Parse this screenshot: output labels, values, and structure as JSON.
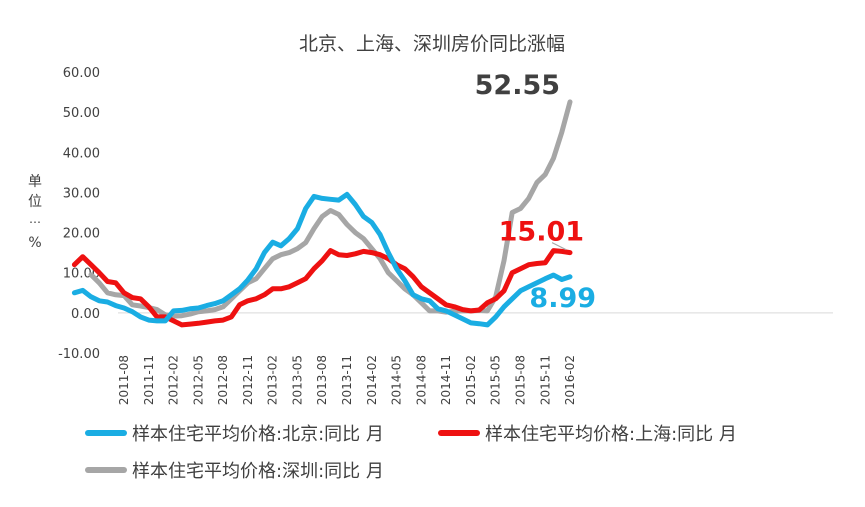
{
  "chart_data": {
    "type": "line",
    "title": "北京、上海、深圳房价同比涨幅",
    "ylabel": "单位：%",
    "ylabel_glyphs": [
      "单",
      "位",
      "…",
      "%"
    ],
    "ylim": [
      -10,
      60
    ],
    "yticks": [
      -10,
      0,
      10,
      20,
      30,
      40,
      50,
      60
    ],
    "ytick_labels": [
      "-10.00",
      "0.00",
      "10.00",
      "20.00",
      "30.00",
      "40.00",
      "50.00",
      "60.00"
    ],
    "xtick_labels": [
      "2011-08",
      "2011-11",
      "2012-02",
      "2012-05",
      "2012-08",
      "2012-11",
      "2013-02",
      "2013-05",
      "2013-08",
      "2013-11",
      "2014-02",
      "2014-05",
      "2014-08",
      "2014-11",
      "2015-02",
      "2015-05",
      "2015-08",
      "2015-11",
      "2016-02"
    ],
    "x_start": "2011-08",
    "x_end": "2016-02",
    "grid": false,
    "legend_position": "bottom",
    "series": [
      {
        "name": "样本住宅平均价格:北京:同比 月",
        "color": "#1AADE3",
        "values": [
          5.0,
          5.6,
          4.0,
          3.0,
          2.7,
          1.8,
          1.2,
          0.3,
          -1.0,
          -1.8,
          -2.0,
          -2.0,
          0.5,
          0.6,
          1.0,
          1.2,
          1.8,
          2.3,
          3.0,
          4.5,
          6.0,
          8.2,
          11.0,
          15.0,
          17.6,
          16.7,
          18.5,
          21.0,
          26.0,
          29.0,
          28.5,
          28.3,
          28.1,
          29.5,
          27.0,
          24.0,
          22.5,
          19.5,
          15.0,
          11.0,
          8.0,
          4.5,
          3.5,
          3.0,
          1.0,
          0.5,
          -0.5,
          -1.5,
          -2.5,
          -2.7,
          -3.0,
          -1.0,
          1.5,
          3.5,
          5.5,
          6.5,
          7.5,
          8.5,
          9.4,
          8.3,
          8.99
        ]
      },
      {
        "name": "样本住宅平均价格:上海:同比 月",
        "color": "#EE1111",
        "values": [
          12.0,
          14.0,
          12.0,
          10.0,
          7.8,
          7.5,
          5.0,
          3.8,
          3.5,
          1.5,
          -1.0,
          -1.0,
          -2.0,
          -3.0,
          -2.8,
          -2.6,
          -2.3,
          -2.0,
          -1.8,
          -1.0,
          2.0,
          3.0,
          3.5,
          4.5,
          6.0,
          6.0,
          6.5,
          7.5,
          8.5,
          11.0,
          13.0,
          15.5,
          14.5,
          14.3,
          14.7,
          15.3,
          15.0,
          14.5,
          13.5,
          12.0,
          11.0,
          9.0,
          6.5,
          5.0,
          3.5,
          2.0,
          1.5,
          0.8,
          0.5,
          0.7,
          2.5,
          3.5,
          5.5,
          10.0,
          11.0,
          12.0,
          12.3,
          12.5,
          15.5,
          15.3,
          15.01
        ]
      },
      {
        "name": "样本住宅平均价格:深圳:同比 月",
        "color": "#A6A6A6",
        "values": [
          9.5,
          7.5,
          5.0,
          4.5,
          4.3,
          2.0,
          1.7,
          1.3,
          0.8,
          -0.5,
          -0.8,
          -0.7,
          -0.3,
          0.3,
          0.5,
          0.8,
          1.5,
          3.5,
          5.5,
          7.5,
          8.5,
          11.0,
          13.5,
          14.5,
          15.0,
          16.0,
          17.5,
          21.0,
          24.0,
          25.5,
          24.5,
          22.0,
          20.0,
          18.5,
          16.0,
          13.5,
          10.0,
          8.0,
          6.0,
          4.5,
          2.5,
          0.5,
          0.5,
          0.2,
          0.4,
          0.5,
          0.5,
          0.6,
          0.5,
          4.0,
          13.0,
          25.0,
          26.0,
          28.5,
          32.5,
          34.5,
          38.5,
          45.0,
          52.55
        ]
      }
    ],
    "annotations": [
      {
        "series": "样本住宅平均价格:深圳:同比 月",
        "text": "52.55",
        "color": "#404040"
      },
      {
        "series": "样本住宅平均价格:上海:同比 月",
        "text": "15.01",
        "color": "#EE1111"
      },
      {
        "series": "样本住宅平均价格:北京:同比 月",
        "text": "8.99",
        "color": "#1AADE3"
      }
    ]
  }
}
